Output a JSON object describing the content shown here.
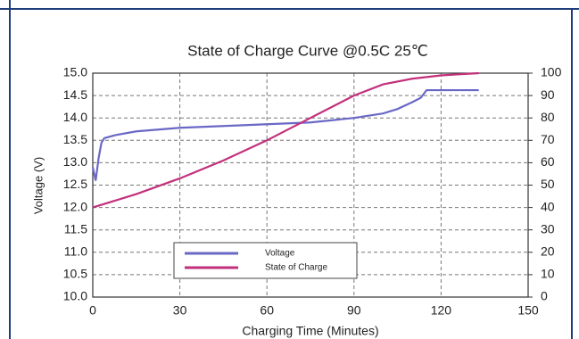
{
  "chart_data": {
    "type": "line",
    "title": "State of Charge Curve @0.5C 25℃",
    "xlabel": "Charging Time (Minutes)",
    "ylabel": "Voltage (V)",
    "xlim": [
      0,
      150
    ],
    "xticks": [
      0,
      30,
      60,
      90,
      120,
      150
    ],
    "ylim": [
      10,
      15
    ],
    "yticks": [
      {
        "value": 10,
        "label": "10.0"
      },
      10.5,
      {
        "value": 11,
        "label": "11.0"
      },
      11.5,
      {
        "value": 12,
        "label": "12.0"
      },
      12.5,
      {
        "value": 13,
        "label": "13.0"
      },
      13.5,
      {
        "value": 14,
        "label": "14.0"
      },
      14.5,
      {
        "value": 15,
        "label": "15.0"
      }
    ],
    "y2lim": [
      0,
      100
    ],
    "y2ticks": [
      0,
      10,
      20,
      30,
      40,
      50,
      60,
      70,
      80,
      90,
      100
    ],
    "grid": true,
    "legend": "lower left",
    "series": [
      {
        "name": "Voltage",
        "color": "#6a68c6",
        "x": [
          0,
          1,
          2,
          3,
          4,
          8,
          15,
          30,
          45,
          60,
          75,
          90,
          100,
          105,
          110,
          113,
          115,
          120,
          133
        ],
        "values": [
          12.9,
          12.6,
          13.1,
          13.45,
          13.55,
          13.62,
          13.7,
          13.78,
          13.82,
          13.86,
          13.9,
          14.0,
          14.1,
          14.2,
          14.35,
          14.45,
          14.62,
          14.62,
          14.62
        ]
      },
      {
        "name": "State of Charge",
        "color": "#c2307b",
        "axis": "y2",
        "x": [
          0,
          15,
          30,
          45,
          60,
          75,
          90,
          100,
          110,
          120,
          133
        ],
        "values": [
          40,
          46,
          53,
          61,
          70,
          80,
          90,
          95,
          97.5,
          99,
          100
        ]
      }
    ]
  }
}
